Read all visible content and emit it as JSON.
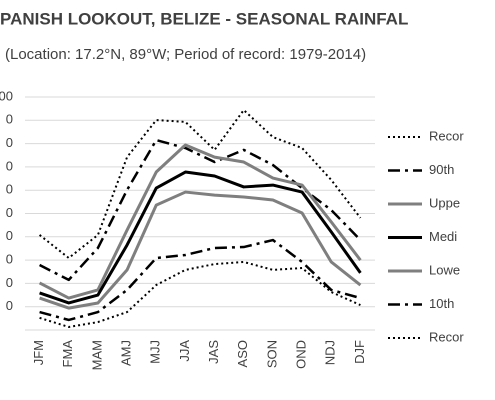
{
  "chart_data": {
    "type": "line",
    "title": "PANISH LOOKOUT, BELIZE - SEASONAL RAINFAL",
    "subtitle": "(Location: 17.2°N, 89°W; Period of record: 1979-2014)",
    "categories": [
      "JFM",
      "FMA",
      "MAM",
      "AMJ",
      "MJJ",
      "JJA",
      "JAS",
      "ASO",
      "SON",
      "OND",
      "NDJ",
      "DJF"
    ],
    "ylim": [
      0,
      1000
    ],
    "yticks": [
      {
        "value": 100,
        "label": "0"
      },
      {
        "value": 200,
        "label": "0"
      },
      {
        "value": 300,
        "label": "0"
      },
      {
        "value": 400,
        "label": "0"
      },
      {
        "value": 500,
        "label": "0"
      },
      {
        "value": 600,
        "label": "0"
      },
      {
        "value": 700,
        "label": "0"
      },
      {
        "value": 800,
        "label": "0"
      },
      {
        "value": 900,
        "label": "0"
      },
      {
        "value": 1000,
        "label": "00"
      }
    ],
    "grid": true,
    "legend": "right",
    "series": [
      {
        "name": "Recor",
        "color": "#000000",
        "dash": "dotted",
        "width": 2,
        "values": [
          408,
          309,
          408,
          742,
          901,
          893,
          773,
          944,
          828,
          781,
          644,
          481
        ]
      },
      {
        "name": "90th",
        "color": "#000000",
        "dash": "dashdot",
        "width": 2.5,
        "values": [
          279,
          215,
          352,
          601,
          815,
          781,
          721,
          773,
          708,
          609,
          515,
          386
        ]
      },
      {
        "name": "Uppe",
        "color": "#7f7f7f",
        "dash": "solid",
        "width": 3,
        "values": [
          202,
          137,
          172,
          429,
          678,
          794,
          742,
          721,
          652,
          622,
          464,
          300
        ]
      },
      {
        "name": "Medi",
        "color": "#000000",
        "dash": "solid",
        "width": 3,
        "values": [
          159,
          116,
          150,
          365,
          609,
          678,
          661,
          614,
          622,
          592,
          421,
          245
        ]
      },
      {
        "name": "Lowe",
        "color": "#7f7f7f",
        "dash": "solid",
        "width": 3,
        "values": [
          137,
          94,
          116,
          258,
          536,
          592,
          579,
          571,
          558,
          502,
          292,
          193
        ]
      },
      {
        "name": "10th",
        "color": "#000000",
        "dash": "dashdot",
        "width": 2.5,
        "values": [
          77,
          43,
          77,
          172,
          309,
          322,
          352,
          356,
          386,
          292,
          172,
          137
        ]
      },
      {
        "name": "Recor",
        "color": "#000000",
        "dash": "dotted",
        "width": 2,
        "values": [
          52,
          13,
          34,
          77,
          193,
          258,
          283,
          292,
          258,
          266,
          163,
          107
        ]
      }
    ]
  }
}
